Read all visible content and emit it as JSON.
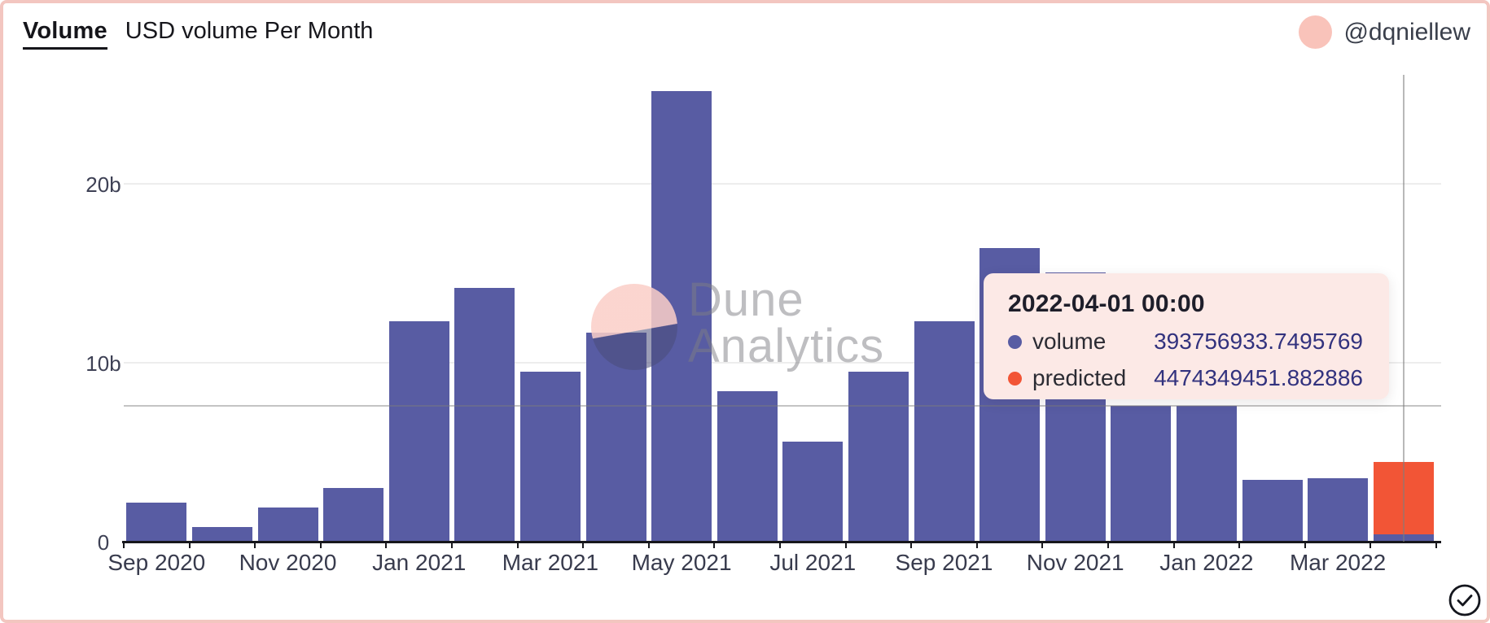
{
  "page": {
    "border_color": "#f3c6c0",
    "background": "#ffffff"
  },
  "header": {
    "title": "Volume",
    "subtitle": "USD volume Per Month",
    "author_handle": "@dqniellew",
    "avatar_color": "#f9c3ba"
  },
  "watermark": {
    "line1": "Dune",
    "line2": "Analytics"
  },
  "tooltip": {
    "title": "2022-04-01 00:00",
    "rows": [
      {
        "label": "volume",
        "value": "393756933.7495769",
        "color": "#585ca3"
      },
      {
        "label": "predicted",
        "value": "4474349451.882886",
        "color": "#f25536"
      }
    ]
  },
  "footer_icons": {
    "check": "✓"
  },
  "chart_data": {
    "type": "bar",
    "title": "USD volume Per Month",
    "unit": "billions of USD",
    "x": [
      "Sep 2020",
      "Oct 2020",
      "Nov 2020",
      "Dec 2020",
      "Jan 2021",
      "Feb 2021",
      "Mar 2021",
      "Apr 2021",
      "May 2021",
      "Jun 2021",
      "Jul 2021",
      "Aug 2021",
      "Sep 2021",
      "Oct 2021",
      "Nov 2021",
      "Dec 2021",
      "Jan 2022",
      "Feb 2022",
      "Mar 2022",
      "Apr 2022"
    ],
    "series": [
      {
        "name": "volume",
        "color": "#585ca3",
        "values_billions": [
          2.2,
          0.8,
          1.9,
          3.0,
          12.3,
          14.2,
          9.5,
          11.7,
          25.2,
          8.4,
          5.6,
          9.5,
          12.3,
          16.4,
          15.05,
          7.6,
          7.6,
          3.45,
          3.55,
          0.3937569337495769
        ]
      },
      {
        "name": "predicted",
        "color": "#f25536",
        "values_billions": [
          null,
          null,
          null,
          null,
          null,
          null,
          null,
          null,
          null,
          null,
          null,
          null,
          null,
          null,
          null,
          null,
          null,
          null,
          null,
          4.474349451882886
        ]
      }
    ],
    "yticks": [
      {
        "value": 0,
        "label": "0"
      },
      {
        "value": 10,
        "label": "10b"
      },
      {
        "value": 20,
        "label": "20b"
      }
    ],
    "ymax_billions": 26,
    "xtick_labels": [
      "Sep 2020",
      "Nov 2020",
      "Jan 2021",
      "Mar 2021",
      "May 2021",
      "Jul 2021",
      "Sep 2021",
      "Nov 2021",
      "Jan 2022",
      "Mar 2022"
    ],
    "grid": true,
    "legend_position": "none",
    "hover": {
      "index": 19,
      "date_label": "2022-04-01 00:00"
    }
  }
}
